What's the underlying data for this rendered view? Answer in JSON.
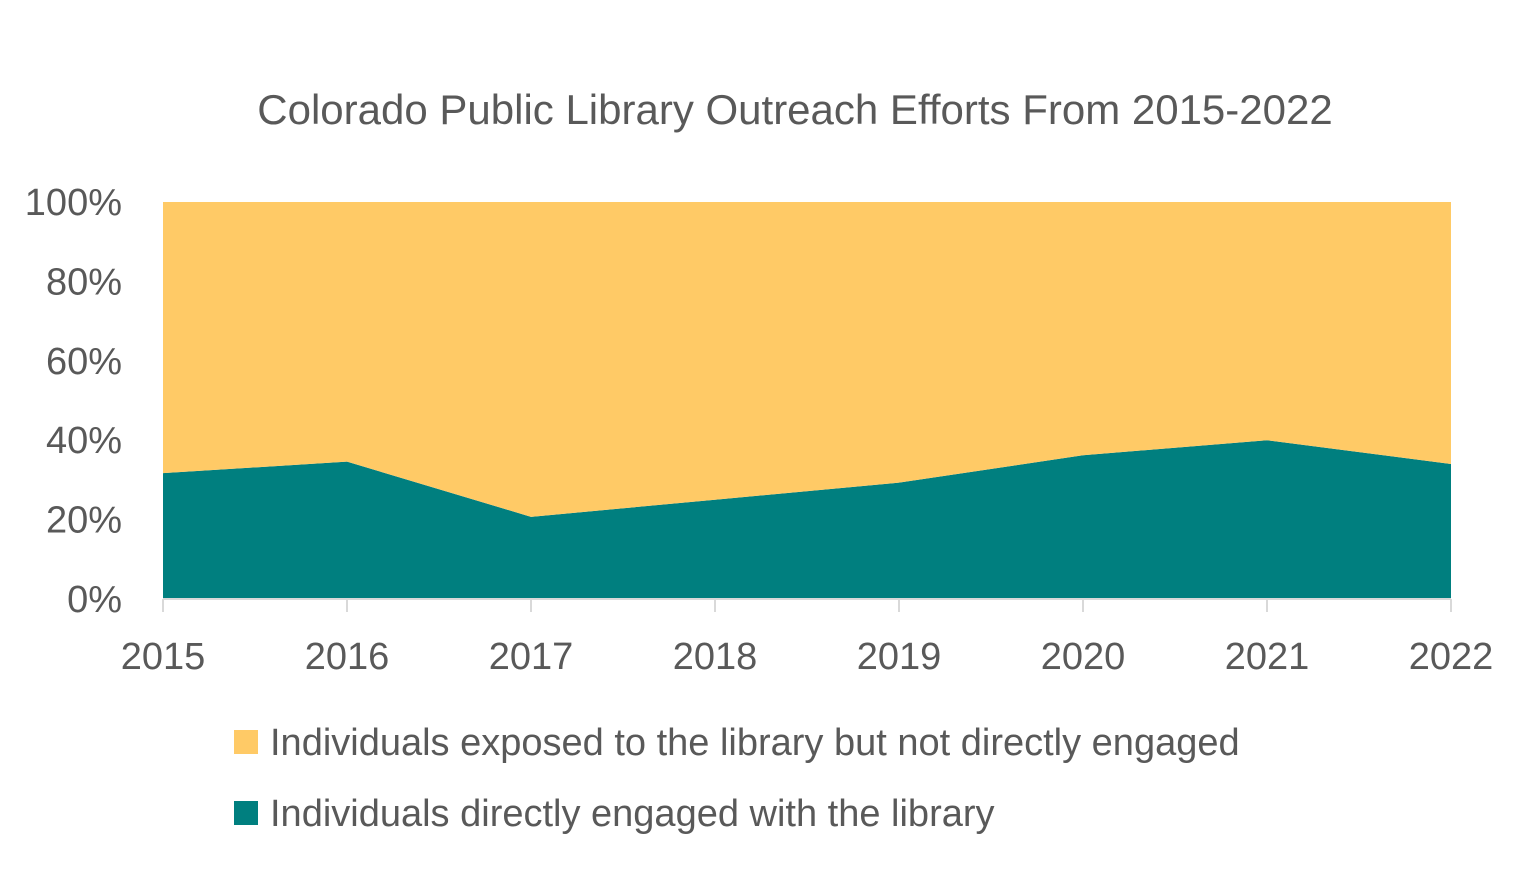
{
  "chart_data": {
    "type": "area",
    "stacked": "percent",
    "title": "Colorado Public Library Outreach Efforts From 2015-2022",
    "xlabel": "",
    "ylabel": "",
    "categories": [
      "2015",
      "2016",
      "2017",
      "2018",
      "2019",
      "2020",
      "2021",
      "2022"
    ],
    "y_ticks": [
      "0%",
      "20%",
      "40%",
      "60%",
      "80%",
      "100%"
    ],
    "ylim": [
      0,
      100
    ],
    "grid": false,
    "legend_position": "bottom",
    "series": [
      {
        "name": "Individuals directly engaged with the library",
        "color": "#007F7F",
        "values": [
          31.7,
          34.6,
          20.7,
          25.0,
          29.3,
          36.2,
          40.0,
          34.0
        ]
      },
      {
        "name": "Individuals exposed to the library but not directly engaged",
        "color": "#FFCA66",
        "values": [
          68.3,
          65.4,
          79.3,
          75.0,
          70.7,
          63.8,
          60.0,
          66.0
        ]
      }
    ],
    "legend_order": [
      1,
      0
    ]
  }
}
